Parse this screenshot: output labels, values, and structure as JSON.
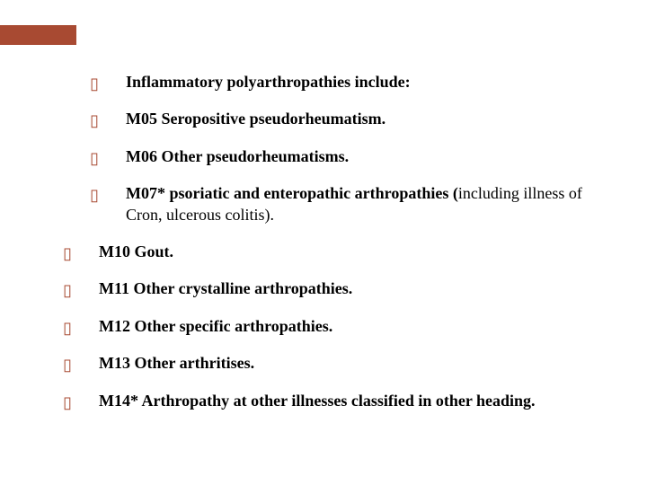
{
  "accent_color": "#a84a32",
  "bullet_color": "#a84a32",
  "bullet_glyph": "▯",
  "items": [
    {
      "bold": "Inflammatory polyarthropathies include:",
      "normal": "",
      "outdent": false
    },
    {
      "bold": "M05 Seropositive pseudorheumatism.",
      "normal": "",
      "outdent": false
    },
    {
      "bold": "M06 Other pseudorheumatisms.",
      "normal": "",
      "outdent": false
    },
    {
      "bold": "M07* psoriatic and enteropathic arthropathies (",
      "normal": "including illness of Cron, ulcerous colitis).",
      "outdent": false
    },
    {
      "bold": "M10 Gout.",
      "normal": "",
      "outdent": true
    },
    {
      "bold": "M11 Other crystalline arthropathies.",
      "normal": "",
      "outdent": true
    },
    {
      "bold": "M12 Other specific arthropathies.",
      "normal": "",
      "outdent": true
    },
    {
      "bold": "M13 Other arthritises.",
      "normal": "",
      "outdent": true
    },
    {
      "bold": "M14* Arthropathy at other illnesses classified in other heading.",
      "normal": "",
      "outdent": true
    }
  ]
}
